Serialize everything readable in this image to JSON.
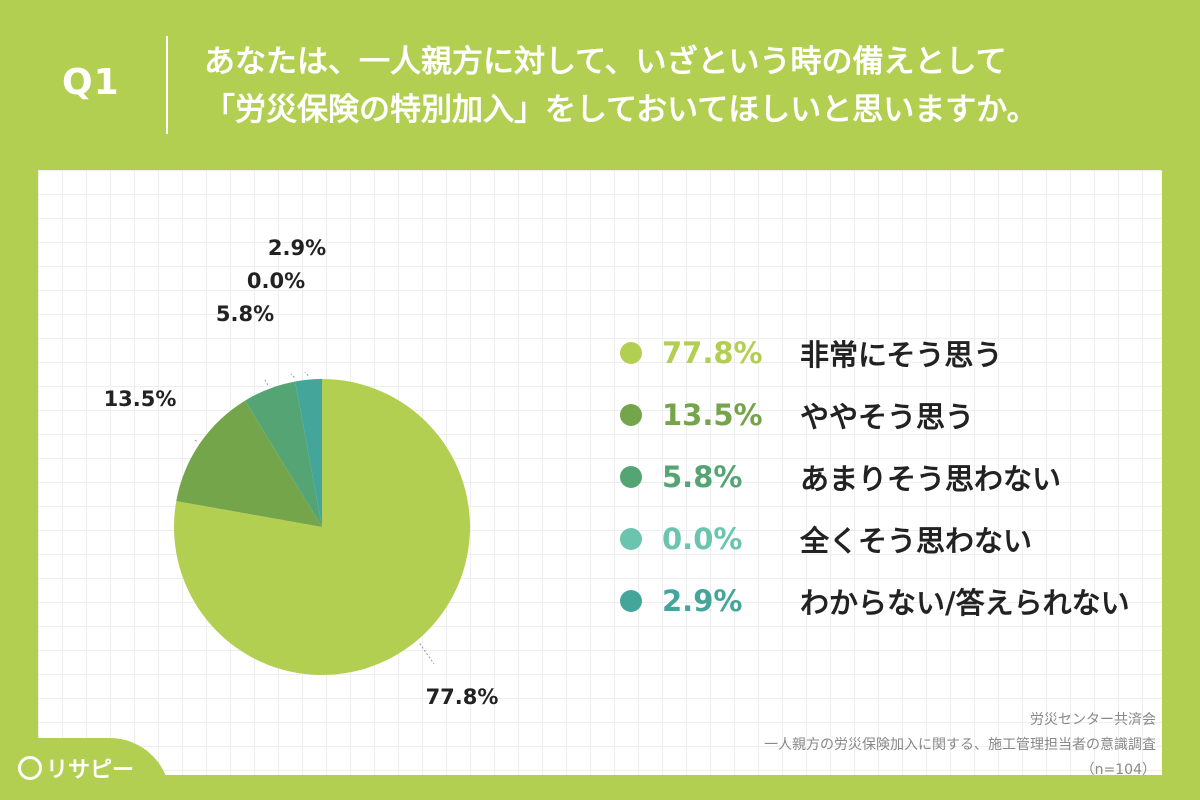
{
  "question": {
    "label": "Q1",
    "line1": "あなたは、一人親方に対して、いざという時の備えとして",
    "line2": "「労災保険の特別加入」をしておいてほしいと思いますか。"
  },
  "chart_data": {
    "type": "pie",
    "categories": [
      "非常にそう思う",
      "ややそう思う",
      "あまりそう思わない",
      "全くそう思わない",
      "わからない/答えられない"
    ],
    "values": [
      77.8,
      13.5,
      5.8,
      0.0,
      2.9
    ],
    "value_labels": [
      "77.8%",
      "13.5%",
      "5.8%",
      "0.0%",
      "2.9%"
    ],
    "colors": [
      "#b3cf52",
      "#75a54b",
      "#55a574",
      "#6bc4ae",
      "#44a59a"
    ],
    "start_angle": "12 o'clock",
    "direction": "clockwise",
    "legend_placement": "right"
  },
  "source": {
    "line1": "労災センター共済会",
    "line2": "一人親方の労災保険加入に関する、施工管理担当者の意識調査",
    "line3": "（n=104）"
  },
  "logo": {
    "text": "リサピー"
  }
}
